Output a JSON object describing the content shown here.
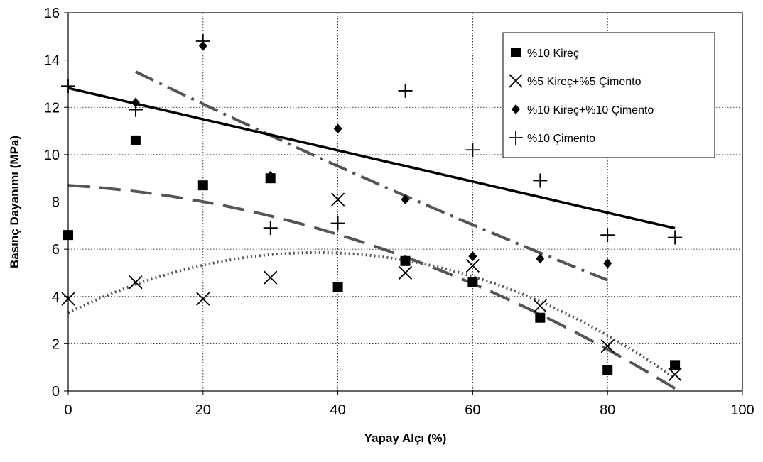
{
  "chart_data": {
    "type": "scatter",
    "xlabel": "Yapay Alçı (%)",
    "ylabel": "Basınç Dayanımı (MPa)",
    "xlim": [
      0,
      100
    ],
    "ylim": [
      0,
      16
    ],
    "x_ticks": [
      "0",
      "20",
      "40",
      "60",
      "80",
      "100"
    ],
    "y_ticks": [
      "0",
      "2",
      "4",
      "6",
      "8",
      "10",
      "12",
      "14",
      "16"
    ],
    "grid": true,
    "legend_position": "top-right",
    "series": [
      {
        "name": "%10 Kireç",
        "marker": "square",
        "x": [
          0,
          10,
          20,
          30,
          40,
          50,
          60,
          70,
          80,
          90
        ],
        "y": [
          6.6,
          10.6,
          8.7,
          9.0,
          4.4,
          5.5,
          4.6,
          3.1,
          0.9,
          1.1
        ],
        "trendline": "polynomial"
      },
      {
        "name": "%5 Kireç+%5 Çimento",
        "marker": "x",
        "x": [
          0,
          10,
          20,
          30,
          40,
          50,
          60,
          70,
          80,
          90
        ],
        "y": [
          3.9,
          4.6,
          3.9,
          4.8,
          8.1,
          5.0,
          5.3,
          3.6,
          1.9,
          0.7
        ],
        "trendline": "polynomial"
      },
      {
        "name": "%10 Kireç+%10 Çimento",
        "marker": "diamond",
        "x": [
          10,
          20,
          30,
          40,
          50,
          60,
          70,
          80
        ],
        "y": [
          12.2,
          14.6,
          9.1,
          11.1,
          8.1,
          5.7,
          5.6,
          5.4
        ],
        "trendline": "polynomial"
      },
      {
        "name": "%10 Çimento",
        "marker": "plus",
        "x": [
          0,
          10,
          20,
          30,
          40,
          50,
          60,
          70,
          80,
          90
        ],
        "y": [
          12.9,
          11.9,
          14.8,
          6.9,
          7.1,
          12.7,
          10.2,
          8.9,
          6.6,
          6.5
        ],
        "trendline": "linear"
      }
    ]
  }
}
